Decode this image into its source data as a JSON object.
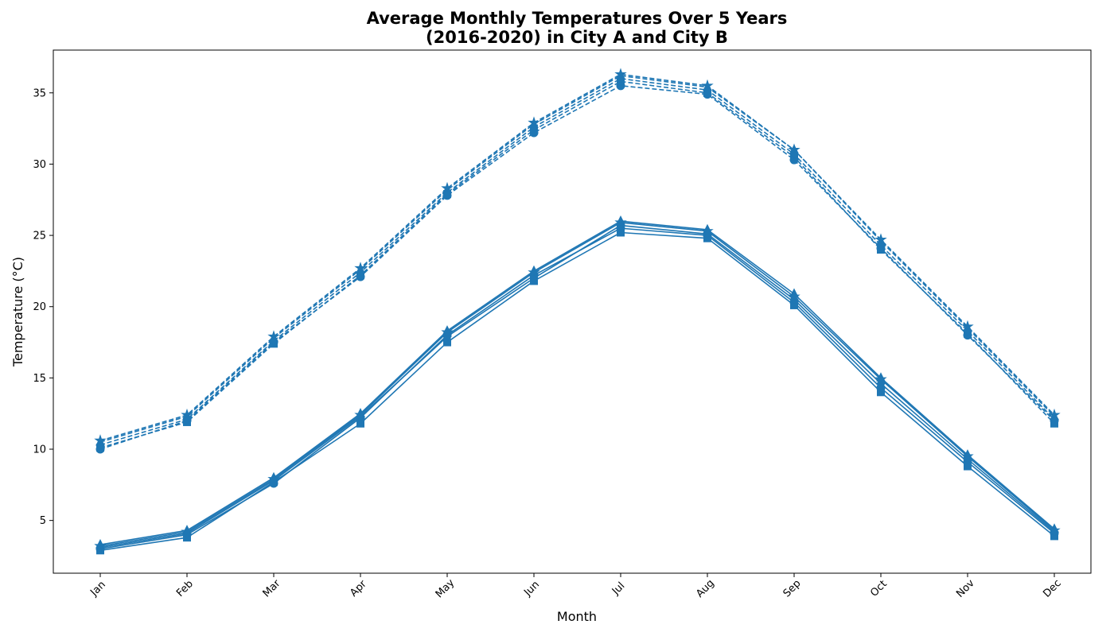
{
  "chart_data": {
    "type": "line",
    "title_line1": "Average Monthly Temperatures Over 5 Years",
    "title_line2": "(2016-2020) in City A and City B",
    "xlabel": "Month",
    "ylabel": "Temperature (°C)",
    "categories": [
      "Jan",
      "Feb",
      "Mar",
      "Apr",
      "May",
      "Jun",
      "Jul",
      "Aug",
      "Sep",
      "Oct",
      "Nov",
      "Dec"
    ],
    "ylim": [
      1.3,
      38.0
    ],
    "yticks": [
      5,
      10,
      15,
      20,
      25,
      30,
      35
    ],
    "grid": false,
    "color": "#1f77b4",
    "series": [
      {
        "city": "A",
        "linestyle": "solid",
        "marker": "circle",
        "values": [
          3.0,
          4.0,
          7.6,
          12.2,
          18.0,
          22.2,
          25.5,
          25.0,
          20.3,
          14.3,
          9.1,
          4.1
        ]
      },
      {
        "city": "A",
        "linestyle": "solid",
        "marker": "triangle",
        "values": [
          3.3,
          4.3,
          8.0,
          12.5,
          18.3,
          22.5,
          26.0,
          25.4,
          20.9,
          15.0,
          9.6,
          4.4
        ]
      },
      {
        "city": "A",
        "linestyle": "solid",
        "marker": "square",
        "values": [
          2.9,
          3.8,
          7.7,
          11.8,
          17.5,
          21.8,
          25.2,
          24.8,
          20.1,
          14.0,
          8.8,
          3.9
        ]
      },
      {
        "city": "A",
        "linestyle": "solid",
        "marker": "diamond",
        "values": [
          3.1,
          4.1,
          7.8,
          12.3,
          17.9,
          22.0,
          25.7,
          25.1,
          20.5,
          14.6,
          9.3,
          4.2
        ]
      },
      {
        "city": "A",
        "linestyle": "solid",
        "marker": "star",
        "values": [
          3.2,
          4.2,
          7.9,
          12.4,
          18.2,
          22.4,
          25.9,
          25.3,
          20.7,
          14.9,
          9.5,
          4.3
        ]
      },
      {
        "city": "B",
        "linestyle": "dashed",
        "marker": "circle",
        "values": [
          10.0,
          12.0,
          17.5,
          22.1,
          27.8,
          32.2,
          35.5,
          34.9,
          30.3,
          24.1,
          18.0,
          12.0
        ]
      },
      {
        "city": "B",
        "linestyle": "dashed",
        "marker": "triangle",
        "values": [
          10.5,
          12.3,
          17.8,
          22.6,
          28.2,
          32.8,
          36.2,
          35.4,
          31.0,
          24.6,
          18.5,
          12.3
        ]
      },
      {
        "city": "B",
        "linestyle": "dashed",
        "marker": "square",
        "values": [
          10.1,
          11.9,
          17.4,
          22.2,
          27.9,
          32.4,
          35.8,
          35.0,
          30.5,
          24.0,
          18.1,
          11.8
        ]
      },
      {
        "city": "B",
        "linestyle": "dashed",
        "marker": "diamond",
        "values": [
          10.3,
          12.1,
          17.6,
          22.4,
          28.0,
          32.6,
          36.0,
          35.2,
          30.7,
          24.3,
          18.3,
          12.1
        ]
      },
      {
        "city": "B",
        "linestyle": "dashed",
        "marker": "star",
        "values": [
          10.6,
          12.4,
          17.9,
          22.7,
          28.3,
          32.9,
          36.3,
          35.5,
          31.0,
          24.7,
          18.6,
          12.4
        ]
      }
    ]
  }
}
